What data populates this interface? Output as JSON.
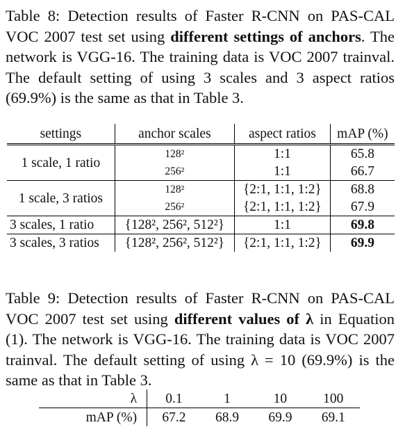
{
  "table8": {
    "caption": {
      "p1": "Table 8: Detection results of Faster R-CNN on PAS-CAL VOC 2007 test set using ",
      "bold": "different settings of anchors",
      "p2": ". The network is VGG-16. The training data is VOC 2007 trainval. The default setting of using 3 scales and 3 aspect ratios (69.9%) is the same as that in Table 3."
    },
    "headers": [
      "settings",
      "anchor scales",
      "aspect ratios",
      "mAP (%)"
    ],
    "rows": [
      {
        "setting": "1 scale, 1 ratio",
        "scale": "128²",
        "ratio": "1:1",
        "map": "65.8"
      },
      {
        "setting": "",
        "scale": "256²",
        "ratio": "1:1",
        "map": "66.7"
      },
      {
        "setting": "1 scale, 3 ratios",
        "scale": "128²",
        "ratio": "{2:1, 1:1, 1:2}",
        "map": "68.8"
      },
      {
        "setting": "",
        "scale": "256²",
        "ratio": "{2:1, 1:1, 1:2}",
        "map": "67.9"
      },
      {
        "setting": "3 scales, 1 ratio",
        "scale": "{128², 256², 512²}",
        "ratio": "1:1",
        "map": "69.8"
      },
      {
        "setting": "3 scales, 3 ratios",
        "scale": "{128², 256², 512²}",
        "ratio": "{2:1, 1:1, 1:2}",
        "map": "69.9"
      }
    ]
  },
  "table9": {
    "caption": {
      "p1": "Table 9: Detection results of Faster R-CNN on PAS-CAL VOC 2007 test set using ",
      "bold": "different values of λ",
      "p2": " in Equation (1). The network is VGG-16. The training data is VOC 2007 trainval. The default setting of using λ = 10 (69.9%) is the same as that in Table 3."
    },
    "row_header_lambda": "λ",
    "row_header_map": "mAP (%)",
    "lambdas": [
      "0.1",
      "1",
      "10",
      "100"
    ],
    "maps": [
      "67.2",
      "68.9",
      "69.9",
      "69.1"
    ]
  }
}
